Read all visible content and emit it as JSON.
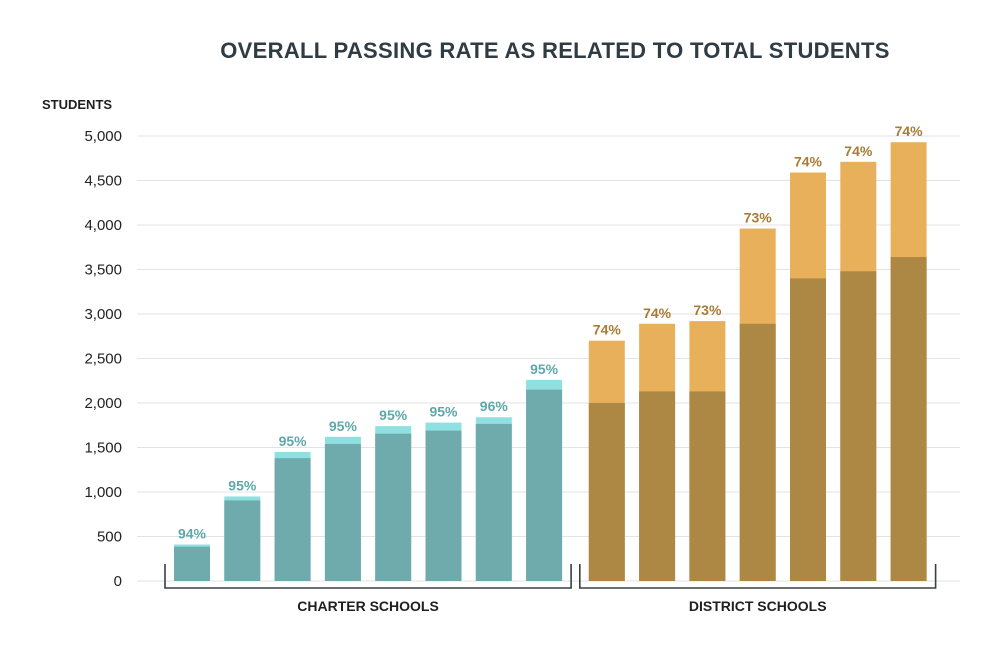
{
  "chart_data": {
    "type": "bar",
    "title": "OVERALL PASSING RATE AS RELATED TO TOTAL STUDENTS",
    "ylabel": "STUDENTS",
    "ylim": [
      0,
      5000
    ],
    "yticks": [
      0,
      500,
      1000,
      1500,
      2000,
      2500,
      3000,
      3500,
      4000,
      4500,
      5000
    ],
    "ytick_labels": [
      "0",
      "500",
      "1,000",
      "1,500",
      "2,000",
      "2,500",
      "3,000",
      "3,500",
      "4,000",
      "4,500",
      "5,000"
    ],
    "grid": true,
    "stacked": true,
    "groups": [
      {
        "label": "CHARTER SCHOOLS",
        "colors": {
          "passing": "#6fabad",
          "total": "#8fe0e0",
          "label": "#5fa8aa"
        },
        "bars": [
          {
            "total": 410,
            "passing": 385,
            "rate_label": "94%"
          },
          {
            "total": 950,
            "passing": 905,
            "rate_label": "95%"
          },
          {
            "total": 1450,
            "passing": 1380,
            "rate_label": "95%"
          },
          {
            "total": 1620,
            "passing": 1540,
            "rate_label": "95%"
          },
          {
            "total": 1740,
            "passing": 1655,
            "rate_label": "95%"
          },
          {
            "total": 1780,
            "passing": 1690,
            "rate_label": "95%"
          },
          {
            "total": 1840,
            "passing": 1765,
            "rate_label": "96%"
          },
          {
            "total": 2260,
            "passing": 2150,
            "rate_label": "95%"
          }
        ]
      },
      {
        "label": "DISTRICT SCHOOLS",
        "colors": {
          "passing": "#ad8744",
          "total": "#e8b05a",
          "label": "#a87b36"
        },
        "bars": [
          {
            "total": 2700,
            "passing": 2000,
            "rate_label": "74%"
          },
          {
            "total": 2890,
            "passing": 2130,
            "rate_label": "74%"
          },
          {
            "total": 2920,
            "passing": 2130,
            "rate_label": "73%"
          },
          {
            "total": 3960,
            "passing": 2890,
            "rate_label": "73%"
          },
          {
            "total": 4590,
            "passing": 3400,
            "rate_label": "74%"
          },
          {
            "total": 4710,
            "passing": 3480,
            "rate_label": "74%"
          },
          {
            "total": 4930,
            "passing": 3640,
            "rate_label": "74%"
          }
        ]
      }
    ]
  }
}
